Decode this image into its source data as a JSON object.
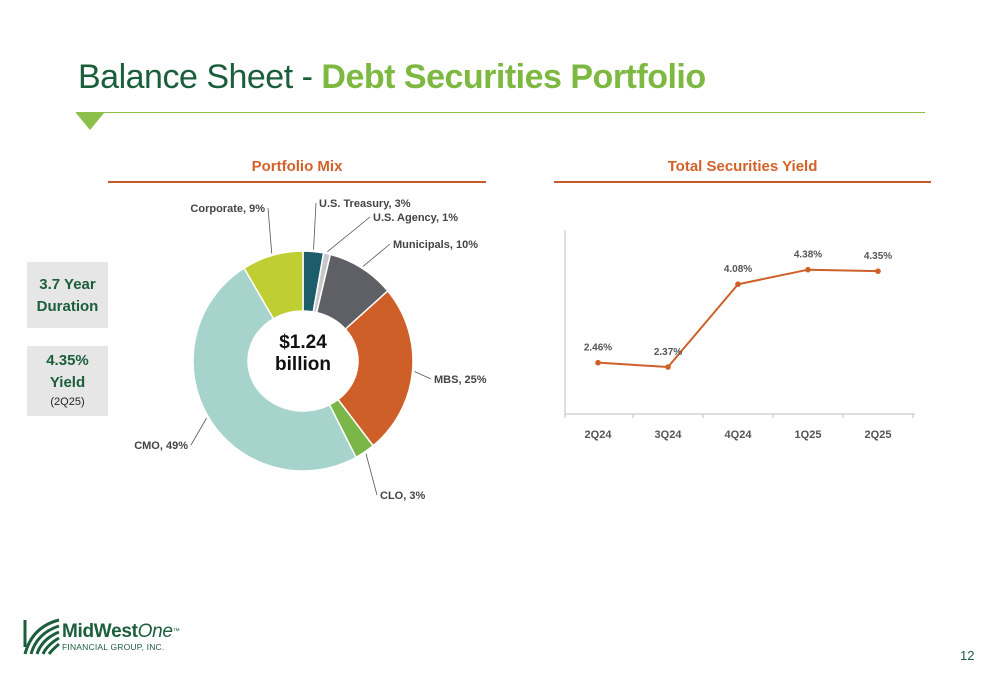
{
  "title": {
    "prefix": "Balance Sheet - ",
    "suffix": "Debt Securities Portfolio"
  },
  "colors": {
    "title_dark": "#1b5e3b",
    "title_green": "#7db841",
    "accent_orange": "#d2622a",
    "box_bg": "#e6e6e6"
  },
  "stats": {
    "duration_value": "3.7 Year",
    "duration_label": "Duration",
    "yield_value": "4.35%",
    "yield_label": "Yield",
    "yield_period": "(2Q25)"
  },
  "chart_data": [
    {
      "type": "pie",
      "title": "Portfolio Mix",
      "center_label_1": "$1.24",
      "center_label_2": "billion",
      "slices": [
        {
          "name": "U.S. Treasury",
          "value": 3,
          "label": "U.S. Treasury, 3%",
          "color": "#1d5d6b"
        },
        {
          "name": "U.S. Agency",
          "value": 1,
          "label": "U.S. Agency, 1%",
          "color": "#c8c8c8"
        },
        {
          "name": "Municipals",
          "value": 10,
          "label": "Municipals, 10%",
          "color": "#5f5f66"
        },
        {
          "name": "MBS",
          "value": 25,
          "label": "MBS, 25%",
          "color": "#cf5f28"
        },
        {
          "name": "CLO",
          "value": 3,
          "label": "CLO, 3%",
          "color": "#7ab648"
        },
        {
          "name": "CMO",
          "value": 49,
          "label": "CMO, 49%",
          "color": "#a6d3cb"
        },
        {
          "name": "Corporate",
          "value": 9,
          "label": "Corporate, 9%",
          "color": "#bfcf33"
        }
      ]
    },
    {
      "type": "line",
      "title": "Total Securities Yield",
      "categories": [
        "2Q24",
        "3Q24",
        "4Q24",
        "1Q25",
        "2Q25"
      ],
      "values": [
        2.46,
        2.37,
        4.08,
        4.38,
        4.35
      ],
      "data_labels": [
        "2.46%",
        "2.37%",
        "4.08%",
        "4.38%",
        "4.35%"
      ],
      "ylim": [
        1.4,
        5.2
      ],
      "color": "#cf5f28"
    }
  ],
  "logo": {
    "name_a": "MidWest",
    "name_b": "One",
    "tm": "™",
    "sub": "FINANCIAL GROUP, INC."
  },
  "page_number": "12"
}
